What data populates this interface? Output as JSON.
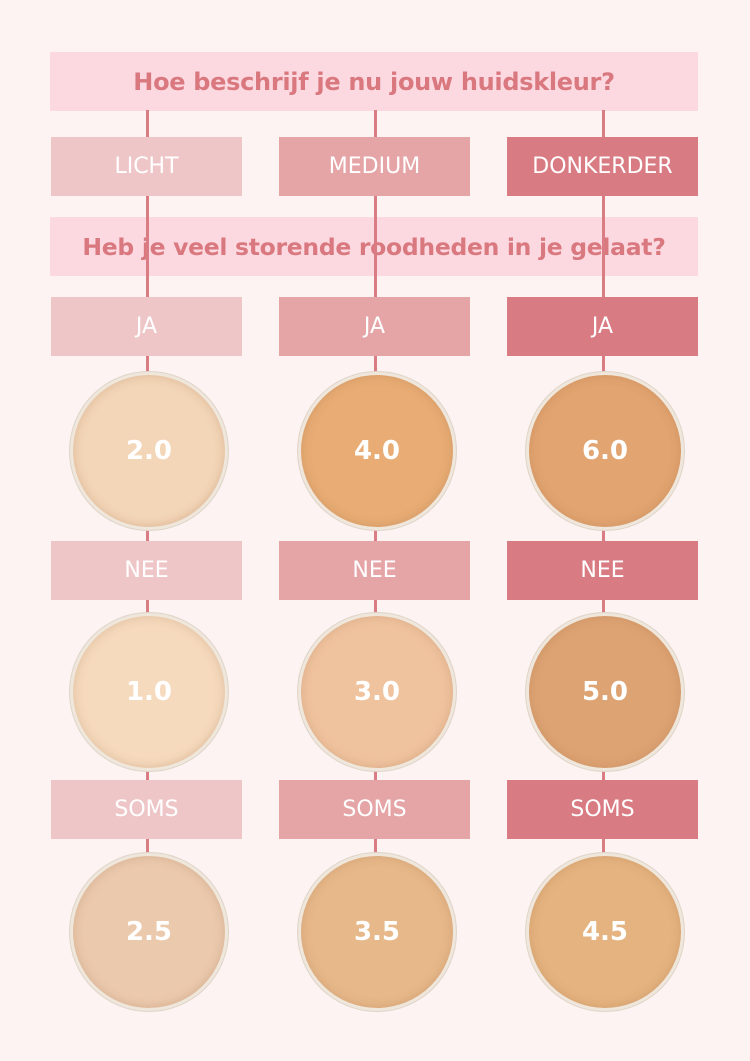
{
  "question1": "Hoe beschrijf je nu jouw huidskleur?",
  "question2": "Heb je veel storende roodheden in je gelaat?",
  "columns": [
    {
      "tone": "LICHT",
      "color": "#efc6c8",
      "answers": [
        {
          "label": "JA",
          "shade": "2.0",
          "swatch": "#f3d5b7"
        },
        {
          "label": "NEE",
          "shade": "1.0",
          "swatch": "#f6dabd"
        },
        {
          "label": "SOMS",
          "shade": "2.5",
          "swatch": "#ebc9ad"
        }
      ]
    },
    {
      "tone": "MEDIUM",
      "color": "#e5a5a7",
      "answers": [
        {
          "label": "JA",
          "shade": "4.0",
          "swatch": "#e8ac74"
        },
        {
          "label": "NEE",
          "shade": "3.0",
          "swatch": "#f0c39f"
        },
        {
          "label": "SOMS",
          "shade": "3.5",
          "swatch": "#e7b889"
        }
      ]
    },
    {
      "tone": "DONKERDER",
      "color": "#d97b82",
      "answers": [
        {
          "label": "JA",
          "shade": "6.0",
          "swatch": "#e2a470"
        },
        {
          "label": "NEE",
          "shade": "5.0",
          "swatch": "#dea373"
        },
        {
          "label": "SOMS",
          "shade": "4.5",
          "swatch": "#e5b37f"
        }
      ]
    }
  ]
}
